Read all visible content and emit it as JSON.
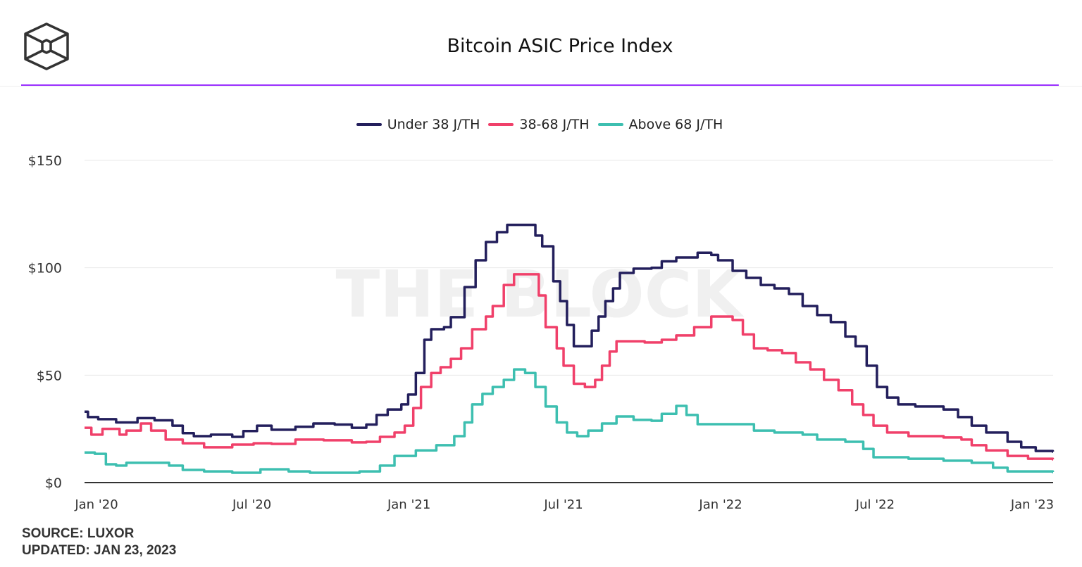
{
  "header": {
    "title": "Bitcoin ASIC Price Index",
    "logo": "the-block-cube-logo"
  },
  "watermark": "THE BLOCK",
  "footer": {
    "source": "SOURCE: LUXOR",
    "updated": "UPDATED: JAN 23, 2023"
  },
  "chart_data": {
    "type": "line",
    "title": "Bitcoin ASIC Price Index",
    "line_style": "step",
    "xlabel": "",
    "ylabel": "",
    "x_ticks": [
      {
        "date": "2020-01-01",
        "label": "Jan '20"
      },
      {
        "date": "2020-07-01",
        "label": "Jul '20"
      },
      {
        "date": "2021-01-01",
        "label": "Jan '21"
      },
      {
        "date": "2021-07-01",
        "label": "Jul '21"
      },
      {
        "date": "2022-01-01",
        "label": "Jan '22"
      },
      {
        "date": "2022-07-01",
        "label": "Jul '22"
      },
      {
        "date": "2023-01-01",
        "label": "Jan '23"
      }
    ],
    "y_ticks": [
      {
        "value": 0,
        "label": "$0"
      },
      {
        "value": 50,
        "label": "$50"
      },
      {
        "value": 100,
        "label": "$100"
      },
      {
        "value": 150,
        "label": "$150"
      }
    ],
    "ylim": [
      0,
      150
    ],
    "grid": true,
    "legend_position": "top-center",
    "series": [
      {
        "name": "Under 38 J/TH",
        "color": "#231f5c",
        "points": [
          [
            "2019-12-18",
            33
          ],
          [
            "2019-12-22",
            30.5
          ],
          [
            "2020-01-03",
            29.5
          ],
          [
            "2020-01-24",
            28
          ],
          [
            "2020-02-18",
            30
          ],
          [
            "2020-03-09",
            29
          ],
          [
            "2020-03-30",
            26.5
          ],
          [
            "2020-04-11",
            23
          ],
          [
            "2020-04-24",
            21.6
          ],
          [
            "2020-05-14",
            22.3
          ],
          [
            "2020-06-08",
            21.3
          ],
          [
            "2020-06-21",
            24
          ],
          [
            "2020-07-07",
            26.5
          ],
          [
            "2020-07-24",
            24.6
          ],
          [
            "2020-08-21",
            26
          ],
          [
            "2020-09-11",
            27.5
          ],
          [
            "2020-10-06",
            27
          ],
          [
            "2020-10-26",
            25.5
          ],
          [
            "2020-11-12",
            27
          ],
          [
            "2020-11-24",
            31.5
          ],
          [
            "2020-12-07",
            34
          ],
          [
            "2020-12-23",
            36.4
          ],
          [
            "2020-12-31",
            41
          ],
          [
            "2021-01-09",
            51
          ],
          [
            "2021-01-19",
            66.5
          ],
          [
            "2021-01-27",
            71.4
          ],
          [
            "2021-02-11",
            72.4
          ],
          [
            "2021-02-19",
            77
          ],
          [
            "2021-03-07",
            91
          ],
          [
            "2021-03-20",
            103.5
          ],
          [
            "2021-04-01",
            112
          ],
          [
            "2021-04-14",
            116.6
          ],
          [
            "2021-04-26",
            120
          ],
          [
            "2021-05-17",
            120
          ],
          [
            "2021-05-29",
            115
          ],
          [
            "2021-06-06",
            110
          ],
          [
            "2021-06-19",
            93.7
          ],
          [
            "2021-06-27",
            84.5
          ],
          [
            "2021-07-05",
            73.4
          ],
          [
            "2021-07-13",
            63.5
          ],
          [
            "2021-07-26",
            63.5
          ],
          [
            "2021-08-03",
            70.7
          ],
          [
            "2021-08-11",
            77.3
          ],
          [
            "2021-08-19",
            84.5
          ],
          [
            "2021-08-28",
            90.4
          ],
          [
            "2021-09-05",
            97.6
          ],
          [
            "2021-09-21",
            99.6
          ],
          [
            "2021-10-12",
            100
          ],
          [
            "2021-10-24",
            103
          ],
          [
            "2021-11-10",
            104.8
          ],
          [
            "2021-12-05",
            107
          ],
          [
            "2021-12-21",
            106
          ],
          [
            "2021-12-29",
            103.5
          ],
          [
            "2022-01-15",
            98.6
          ],
          [
            "2022-01-31",
            95.3
          ],
          [
            "2022-02-17",
            92
          ],
          [
            "2022-03-05",
            90.4
          ],
          [
            "2022-03-22",
            87.8
          ],
          [
            "2022-04-07",
            82.2
          ],
          [
            "2022-04-24",
            78
          ],
          [
            "2022-05-10",
            74.7
          ],
          [
            "2022-05-27",
            68
          ],
          [
            "2022-06-08",
            63.5
          ],
          [
            "2022-06-21",
            54.4
          ],
          [
            "2022-07-03",
            44.5
          ],
          [
            "2022-07-15",
            39.6
          ],
          [
            "2022-07-28",
            36.4
          ],
          [
            "2022-08-17",
            35.4
          ],
          [
            "2022-09-19",
            34
          ],
          [
            "2022-10-06",
            30.5
          ],
          [
            "2022-10-22",
            26.5
          ],
          [
            "2022-11-08",
            23.3
          ],
          [
            "2022-12-03",
            19
          ],
          [
            "2022-12-19",
            16.4
          ],
          [
            "2023-01-05",
            14.7
          ],
          [
            "2023-01-25",
            14.4
          ]
        ]
      },
      {
        "name": "38-68 J/TH",
        "color": "#f0406a",
        "points": [
          [
            "2019-12-18",
            25.5
          ],
          [
            "2019-12-26",
            22.3
          ],
          [
            "2020-01-08",
            25
          ],
          [
            "2020-01-28",
            22.3
          ],
          [
            "2020-02-05",
            24.2
          ],
          [
            "2020-02-22",
            27.5
          ],
          [
            "2020-03-05",
            24.2
          ],
          [
            "2020-03-22",
            20
          ],
          [
            "2020-04-11",
            18.3
          ],
          [
            "2020-05-06",
            16.4
          ],
          [
            "2020-06-08",
            17.7
          ],
          [
            "2020-07-03",
            18.3
          ],
          [
            "2020-07-24",
            18
          ],
          [
            "2020-08-21",
            20
          ],
          [
            "2020-09-23",
            19.7
          ],
          [
            "2020-10-26",
            18.7
          ],
          [
            "2020-11-12",
            19
          ],
          [
            "2020-11-28",
            21.3
          ],
          [
            "2020-12-15",
            23.3
          ],
          [
            "2020-12-27",
            26.5
          ],
          [
            "2021-01-06",
            34.7
          ],
          [
            "2021-01-15",
            44.5
          ],
          [
            "2021-01-27",
            51
          ],
          [
            "2021-02-07",
            53.7
          ],
          [
            "2021-02-19",
            57.6
          ],
          [
            "2021-03-03",
            62.5
          ],
          [
            "2021-03-16",
            71.4
          ],
          [
            "2021-04-01",
            77.3
          ],
          [
            "2021-04-09",
            82.2
          ],
          [
            "2021-04-22",
            92
          ],
          [
            "2021-05-04",
            97
          ],
          [
            "2021-05-25",
            97
          ],
          [
            "2021-06-02",
            87.1
          ],
          [
            "2021-06-10",
            72.4
          ],
          [
            "2021-06-23",
            62.5
          ],
          [
            "2021-07-01",
            54.4
          ],
          [
            "2021-07-13",
            46
          ],
          [
            "2021-07-26",
            44.5
          ],
          [
            "2021-08-07",
            47.8
          ],
          [
            "2021-08-15",
            54.4
          ],
          [
            "2021-08-24",
            61
          ],
          [
            "2021-09-01",
            65.8
          ],
          [
            "2021-09-26",
            65.8
          ],
          [
            "2021-10-04",
            65.2
          ],
          [
            "2021-10-24",
            66.5
          ],
          [
            "2021-11-10",
            68.5
          ],
          [
            "2021-12-01",
            72.4
          ],
          [
            "2021-12-21",
            77.3
          ],
          [
            "2022-01-15",
            75.7
          ],
          [
            "2022-01-27",
            69
          ],
          [
            "2022-02-09",
            62.5
          ],
          [
            "2022-02-25",
            61.6
          ],
          [
            "2022-03-14",
            60.3
          ],
          [
            "2022-03-30",
            56
          ],
          [
            "2022-04-16",
            52.7
          ],
          [
            "2022-05-02",
            47.8
          ],
          [
            "2022-05-19",
            43
          ],
          [
            "2022-06-04",
            36.4
          ],
          [
            "2022-06-17",
            31.5
          ],
          [
            "2022-06-29",
            26.5
          ],
          [
            "2022-07-15",
            23.3
          ],
          [
            "2022-08-09",
            21.6
          ],
          [
            "2022-09-19",
            21
          ],
          [
            "2022-10-10",
            20
          ],
          [
            "2022-10-22",
            17.4
          ],
          [
            "2022-11-08",
            15
          ],
          [
            "2022-12-03",
            12.4
          ],
          [
            "2022-12-27",
            11.1
          ],
          [
            "2023-01-25",
            10.8
          ]
        ]
      },
      {
        "name": "Above 68 J/TH",
        "color": "#3dbfb0",
        "points": [
          [
            "2019-12-18",
            14
          ],
          [
            "2019-12-30",
            13.4
          ],
          [
            "2020-01-12",
            8.5
          ],
          [
            "2020-01-24",
            7.9
          ],
          [
            "2020-02-05",
            9.2
          ],
          [
            "2020-03-01",
            9.2
          ],
          [
            "2020-03-26",
            7.9
          ],
          [
            "2020-04-11",
            5.9
          ],
          [
            "2020-05-06",
            5.2
          ],
          [
            "2020-06-08",
            4.6
          ],
          [
            "2020-07-11",
            6.2
          ],
          [
            "2020-08-13",
            5.2
          ],
          [
            "2020-09-07",
            4.6
          ],
          [
            "2020-10-10",
            4.6
          ],
          [
            "2020-11-04",
            5.2
          ],
          [
            "2020-11-28",
            7.9
          ],
          [
            "2020-12-15",
            12.4
          ],
          [
            "2021-01-09",
            15
          ],
          [
            "2021-02-02",
            17.4
          ],
          [
            "2021-02-23",
            21.6
          ],
          [
            "2021-03-07",
            28
          ],
          [
            "2021-03-16",
            36.4
          ],
          [
            "2021-03-28",
            41.3
          ],
          [
            "2021-04-09",
            44.5
          ],
          [
            "2021-04-22",
            47.8
          ],
          [
            "2021-05-04",
            52.7
          ],
          [
            "2021-05-17",
            51
          ],
          [
            "2021-05-29",
            44.5
          ],
          [
            "2021-06-10",
            35.4
          ],
          [
            "2021-06-23",
            28
          ],
          [
            "2021-07-05",
            23.3
          ],
          [
            "2021-07-17",
            21.6
          ],
          [
            "2021-07-30",
            24.2
          ],
          [
            "2021-08-15",
            27.5
          ],
          [
            "2021-09-01",
            30.8
          ],
          [
            "2021-09-21",
            29.2
          ],
          [
            "2021-10-12",
            28.8
          ],
          [
            "2021-10-24",
            32
          ],
          [
            "2021-11-10",
            35.7
          ],
          [
            "2021-11-22",
            31.5
          ],
          [
            "2021-12-05",
            27.2
          ],
          [
            "2022-01-23",
            27.2
          ],
          [
            "2022-02-09",
            24.2
          ],
          [
            "2022-03-05",
            23.3
          ],
          [
            "2022-04-07",
            22.3
          ],
          [
            "2022-04-24",
            20
          ],
          [
            "2022-05-27",
            19
          ],
          [
            "2022-06-17",
            15.7
          ],
          [
            "2022-06-29",
            11.8
          ],
          [
            "2022-08-09",
            11.1
          ],
          [
            "2022-09-19",
            10.2
          ],
          [
            "2022-10-22",
            9.2
          ],
          [
            "2022-11-16",
            6.9
          ],
          [
            "2022-12-03",
            5.2
          ],
          [
            "2023-01-25",
            4.9
          ]
        ]
      }
    ]
  }
}
